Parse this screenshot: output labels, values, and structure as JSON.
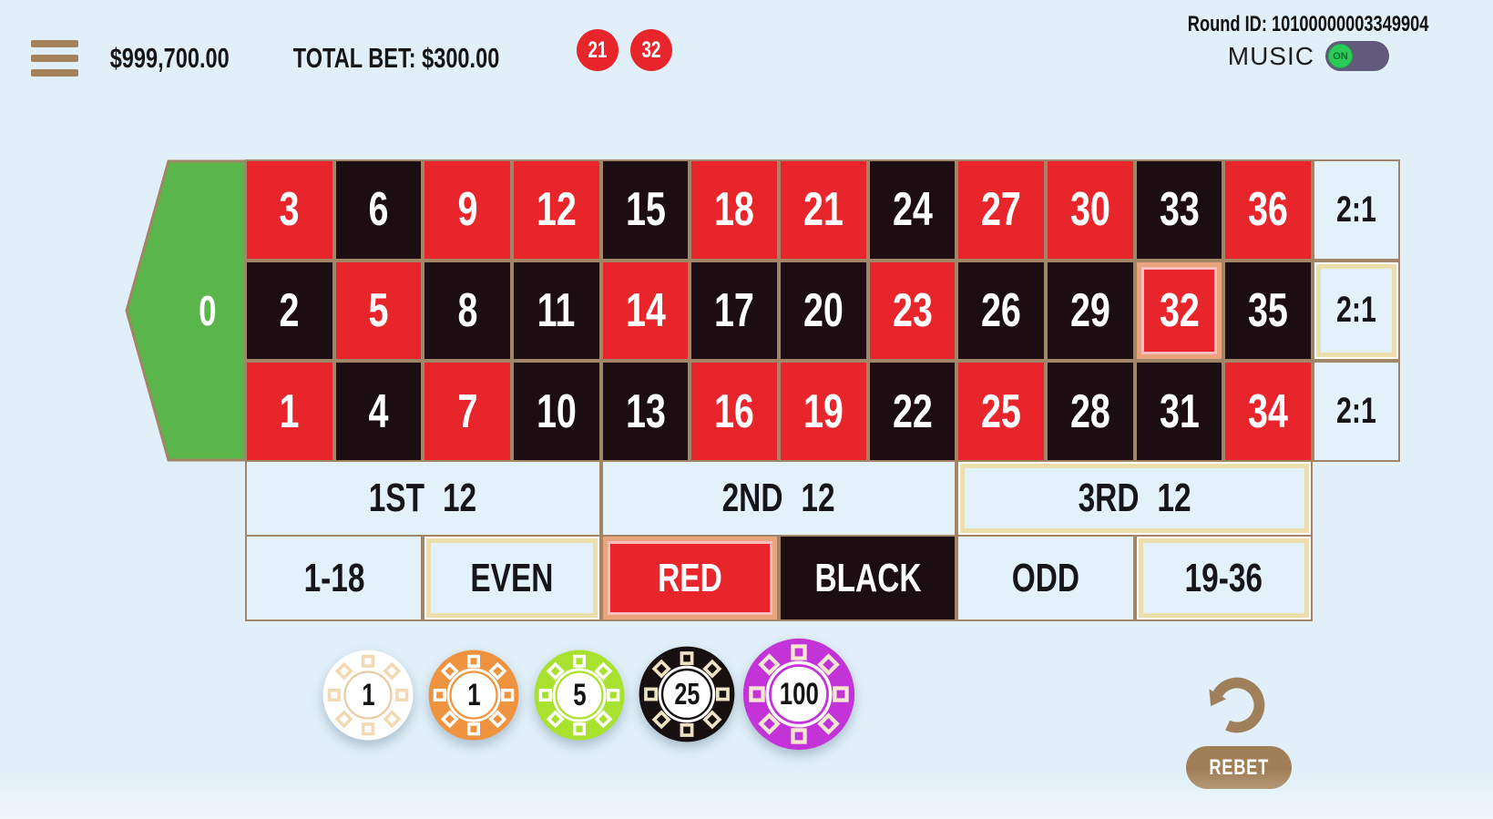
{
  "header": {
    "balance": "$999,700.00",
    "total_bet": "TOTAL BET: $300.00",
    "recent_results": [
      {
        "value": "21",
        "color": "#e8252b"
      },
      {
        "value": "32",
        "color": "#e8252b"
      }
    ],
    "round_id": "Round ID: 10100000003349904",
    "music_label": "MUSIC",
    "music_state": "ON",
    "music_on": true
  },
  "table": {
    "zero_label": "0",
    "grid_rows": [
      [
        {
          "n": "3",
          "color": "red"
        },
        {
          "n": "6",
          "color": "black"
        },
        {
          "n": "9",
          "color": "red"
        },
        {
          "n": "12",
          "color": "red"
        },
        {
          "n": "15",
          "color": "black"
        },
        {
          "n": "18",
          "color": "red"
        },
        {
          "n": "21",
          "color": "red"
        },
        {
          "n": "24",
          "color": "black"
        },
        {
          "n": "27",
          "color": "red"
        },
        {
          "n": "30",
          "color": "red"
        },
        {
          "n": "33",
          "color": "black"
        },
        {
          "n": "36",
          "color": "red"
        }
      ],
      [
        {
          "n": "2",
          "color": "black"
        },
        {
          "n": "5",
          "color": "red"
        },
        {
          "n": "8",
          "color": "black"
        },
        {
          "n": "11",
          "color": "black"
        },
        {
          "n": "14",
          "color": "red"
        },
        {
          "n": "17",
          "color": "black"
        },
        {
          "n": "20",
          "color": "black"
        },
        {
          "n": "23",
          "color": "red"
        },
        {
          "n": "26",
          "color": "black"
        },
        {
          "n": "29",
          "color": "black"
        },
        {
          "n": "32",
          "color": "red",
          "highlight": "salmon"
        },
        {
          "n": "35",
          "color": "black"
        }
      ],
      [
        {
          "n": "1",
          "color": "red"
        },
        {
          "n": "4",
          "color": "black"
        },
        {
          "n": "7",
          "color": "red"
        },
        {
          "n": "10",
          "color": "black"
        },
        {
          "n": "13",
          "color": "black"
        },
        {
          "n": "16",
          "color": "red"
        },
        {
          "n": "19",
          "color": "red"
        },
        {
          "n": "22",
          "color": "black"
        },
        {
          "n": "25",
          "color": "red"
        },
        {
          "n": "28",
          "color": "black"
        },
        {
          "n": "31",
          "color": "black"
        },
        {
          "n": "34",
          "color": "red"
        }
      ]
    ],
    "column_bets": [
      {
        "label": "2:1"
      },
      {
        "label": "2:1",
        "highlight": "cream"
      },
      {
        "label": "2:1"
      }
    ],
    "dozens": [
      {
        "label": "1ST 12"
      },
      {
        "label": "2ND 12"
      },
      {
        "label": "3RD 12",
        "highlight": "cream"
      }
    ],
    "outside_bets": [
      {
        "label": "1-18",
        "style": "plain"
      },
      {
        "label": "EVEN",
        "style": "plain",
        "highlight": "cream"
      },
      {
        "label": "RED",
        "style": "red",
        "highlight": "salmon"
      },
      {
        "label": "BLACK",
        "style": "black"
      },
      {
        "label": "ODD",
        "style": "plain"
      },
      {
        "label": "19-36",
        "style": "plain",
        "highlight": "cream"
      }
    ]
  },
  "chips": [
    {
      "value": "1",
      "color": "#ffffff",
      "mark": "#f2d9b4",
      "ring": "#e8cda4",
      "selected": false
    },
    {
      "value": "1",
      "color": "#f0933e",
      "mark": "#ffffff",
      "ring": "#f0933e",
      "selected": false
    },
    {
      "value": "5",
      "color": "#a9e22e",
      "mark": "#ffffff",
      "ring": "#a9e22e",
      "selected": false
    },
    {
      "value": "25",
      "color": "#171010",
      "mark": "#eee2c5",
      "ring": "#171010",
      "selected": false
    },
    {
      "value": "100",
      "color": "#c334d8",
      "mark": "#f4e8d2",
      "ring": "#c334d8",
      "selected": true
    }
  ],
  "actions": {
    "rebet_label": "REBET"
  },
  "colors": {
    "background": "#e0eff8",
    "table_border": "#a08566",
    "red": "#e8252b",
    "black": "#1c0d13",
    "green_zero": "#5ab54a",
    "brown_accent": "#a5825a",
    "cream_highlight": "#eadfad",
    "salmon_highlight": "#e9a47d"
  }
}
